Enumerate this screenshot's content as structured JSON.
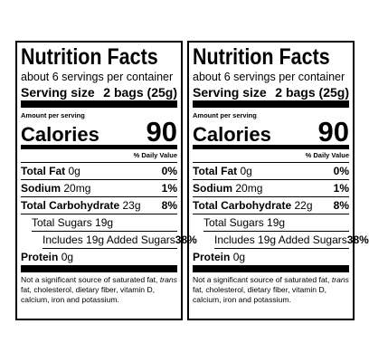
{
  "labels": [
    {
      "title": "Nutrition Facts",
      "servings": "about 6 servings per container",
      "serving_size_label": "Serving size",
      "serving_size_value": "2 bags (25g)",
      "amount_per_serving": "Amount per serving",
      "calories_label": "Calories",
      "calories_value": "90",
      "daily_value_header": "% Daily Value",
      "rows": [
        {
          "name": "Total Fat",
          "amount": "0g",
          "dv": "0%"
        },
        {
          "name": "Sodium",
          "amount": "20mg",
          "dv": "1%"
        },
        {
          "name": "Total Carbohydrate",
          "amount": "23g",
          "dv": "8%"
        },
        {
          "name": "Total Sugars",
          "amount": "19g"
        },
        {
          "name": "Includes 19g Added Sugars",
          "dv": "38%"
        },
        {
          "name": "Protein",
          "amount": "0g"
        }
      ],
      "footnote": {
        "before": "Not a significant source of saturated fat,",
        "italic": "trans",
        "after": "fat, cholesterol, dietary fiber, vitamin D, calcium, iron and potassium."
      }
    },
    {
      "title": "Nutrition Facts",
      "servings": "about 6 servings per container",
      "serving_size_label": "Serving size",
      "serving_size_value": "2 bags (25g)",
      "amount_per_serving": "Amount per serving",
      "calories_label": "Calories",
      "calories_value": "90",
      "daily_value_header": "% Daily Value",
      "rows": [
        {
          "name": "Total Fat",
          "amount": "0g",
          "dv": "0%"
        },
        {
          "name": "Sodium",
          "amount": "20mg",
          "dv": "1%"
        },
        {
          "name": "Total Carbohydrate",
          "amount": "22g",
          "dv": "8%"
        },
        {
          "name": "Total Sugars",
          "amount": "19g"
        },
        {
          "name": "Includes 19g Added Sugars",
          "dv": "38%"
        },
        {
          "name": "Protein",
          "amount": "0g"
        }
      ],
      "footnote": {
        "before": "Not a significant source of saturated fat,",
        "italic": "trans",
        "after": "fat, cholesterol, dietary fiber, vitamin D, calcium, iron and potassium."
      }
    }
  ]
}
